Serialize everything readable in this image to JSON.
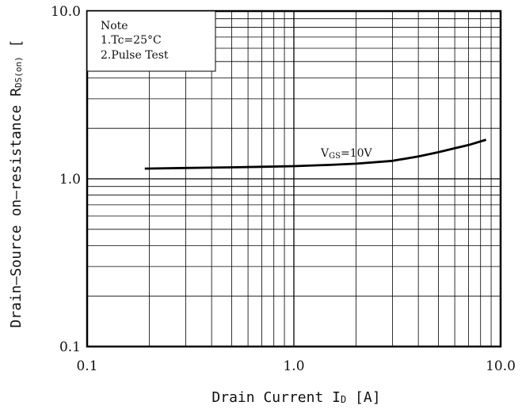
{
  "chart_data": {
    "type": "line",
    "x_scale": "log",
    "y_scale": "log",
    "xlim": [
      0.1,
      10.0
    ],
    "ylim": [
      0.1,
      10.0
    ],
    "grid": true,
    "xlabel": "Drain Current I",
    "xlabel_sub": "D",
    "xlabel_unit": " [A]",
    "ylabel": "Drain–Source on–resistance R",
    "ylabel_sub": "DS(on)",
    "ylabel_unit": " [",
    "x_ticks": [
      "0.1",
      "1.0",
      "10.0"
    ],
    "y_ticks": [
      "0.1",
      "1.0",
      "10.0"
    ],
    "note": {
      "title": "Note",
      "line1": "1.Tc=25°C",
      "line2": "2.Pulse Test"
    },
    "series": [
      {
        "label_main": "V",
        "label_sub": "GS",
        "label_rest": "=10V",
        "x": [
          0.19,
          0.3,
          0.5,
          0.7,
          1.0,
          1.5,
          2.0,
          3.0,
          4.0,
          5.0,
          6.0,
          7.0,
          8.5
        ],
        "y": [
          1.15,
          1.16,
          1.17,
          1.18,
          1.19,
          1.21,
          1.23,
          1.28,
          1.36,
          1.44,
          1.52,
          1.59,
          1.71
        ]
      }
    ],
    "colors": {
      "line": "#000000",
      "grid": "#000000",
      "background": "#ffffff"
    }
  }
}
